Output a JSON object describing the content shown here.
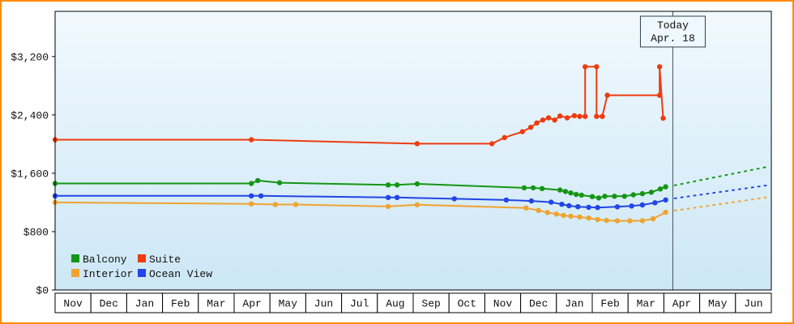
{
  "window": {
    "background": "#ffffff",
    "frame_border_color": "#ff8c00"
  },
  "chart_data": {
    "type": "line",
    "title": "",
    "xlabel": "",
    "ylabel": "",
    "grid": "off",
    "legend_position": "bottom-left inside plot",
    "ylim": [
      0,
      3820
    ],
    "yticks": [
      0,
      800,
      1600,
      2400,
      3200
    ],
    "ytick_labels": [
      "$0",
      "$800",
      "$1,600",
      "$2,400",
      "$3,200"
    ],
    "x_months": [
      "Nov",
      "Dec",
      "Jan",
      "Feb",
      "Mar",
      "Apr",
      "May",
      "Jun",
      "Jul",
      "Aug",
      "Sep",
      "Oct",
      "Nov",
      "Dec",
      "Jan",
      "Feb",
      "Mar",
      "Apr",
      "May",
      "Jun"
    ],
    "x_unit": "month index from first Nov (0-20); prices in USD",
    "plot_bg_top": "#f1f9fe",
    "plot_bg_bottom": "#cde7f6",
    "axis_color": "#000000",
    "today": {
      "line1": "Today",
      "line2": "Apr. 18",
      "x": 17.25,
      "line_color": "#45535e",
      "box_fill": "#eef8fe",
      "box_border": "#33414d"
    },
    "legend": [
      {
        "label": "Balcony",
        "color": "#149614"
      },
      {
        "label": "Suite",
        "color": "#ee3c0f"
      },
      {
        "label": "Interior",
        "color": "#f0a32f"
      },
      {
        "label": "Ocean View",
        "color": "#2145e6"
      }
    ],
    "series": [
      {
        "id": "balcony",
        "name": "Balcony",
        "color": "#149614",
        "points": [
          [
            0,
            1460
          ],
          [
            5.48,
            1460
          ],
          [
            5.66,
            1500
          ],
          [
            6.27,
            1470
          ],
          [
            9.3,
            1440
          ],
          [
            9.55,
            1440
          ],
          [
            10.11,
            1455
          ],
          [
            13.1,
            1400
          ],
          [
            13.35,
            1400
          ],
          [
            13.6,
            1390
          ],
          [
            14.1,
            1370
          ],
          [
            14.25,
            1350
          ],
          [
            14.4,
            1330
          ],
          [
            14.55,
            1310
          ],
          [
            14.7,
            1300
          ],
          [
            15.0,
            1280
          ],
          [
            15.18,
            1262
          ],
          [
            15.35,
            1285
          ],
          [
            15.62,
            1285
          ],
          [
            15.9,
            1285
          ],
          [
            16.15,
            1305
          ],
          [
            16.4,
            1320
          ],
          [
            16.65,
            1340
          ],
          [
            16.9,
            1385
          ],
          [
            17.05,
            1415
          ]
        ],
        "forecast": [
          [
            17.3,
            1435
          ],
          [
            19.85,
            1685
          ]
        ]
      },
      {
        "id": "interior",
        "name": "Interior",
        "color": "#f0a32f",
        "points": [
          [
            0,
            1200
          ],
          [
            5.48,
            1180
          ],
          [
            6.15,
            1172
          ],
          [
            6.72,
            1172
          ],
          [
            9.3,
            1145
          ],
          [
            10.11,
            1168
          ],
          [
            13.15,
            1125
          ],
          [
            13.5,
            1090
          ],
          [
            13.75,
            1062
          ],
          [
            14.0,
            1040
          ],
          [
            14.2,
            1022
          ],
          [
            14.4,
            1010
          ],
          [
            14.65,
            1000
          ],
          [
            14.9,
            986
          ],
          [
            15.15,
            966
          ],
          [
            15.4,
            954
          ],
          [
            15.7,
            948
          ],
          [
            16.05,
            948
          ],
          [
            16.4,
            950
          ],
          [
            16.7,
            976
          ],
          [
            17.05,
            1065
          ]
        ],
        "forecast": [
          [
            17.3,
            1088
          ],
          [
            19.85,
            1268
          ]
        ]
      },
      {
        "id": "ocean-view",
        "name": "Ocean View",
        "color": "#2145e6",
        "points": [
          [
            0,
            1290
          ],
          [
            5.48,
            1290
          ],
          [
            5.75,
            1290
          ],
          [
            9.3,
            1268
          ],
          [
            9.55,
            1268
          ],
          [
            11.15,
            1250
          ],
          [
            12.6,
            1234
          ],
          [
            13.3,
            1220
          ],
          [
            13.85,
            1204
          ],
          [
            14.15,
            1175
          ],
          [
            14.35,
            1155
          ],
          [
            14.6,
            1142
          ],
          [
            14.9,
            1134
          ],
          [
            15.15,
            1130
          ],
          [
            15.7,
            1140
          ],
          [
            16.1,
            1152
          ],
          [
            16.4,
            1166
          ],
          [
            16.75,
            1196
          ],
          [
            17.05,
            1235
          ]
        ],
        "forecast": [
          [
            17.3,
            1256
          ],
          [
            19.85,
            1432
          ]
        ]
      },
      {
        "id": "suite",
        "name": "Suite",
        "color": "#ee3c0f",
        "points": [
          [
            0,
            2060
          ],
          [
            5.48,
            2060
          ],
          [
            10.11,
            2005
          ],
          [
            12.2,
            2005
          ],
          [
            12.55,
            2090
          ],
          [
            13.05,
            2170
          ],
          [
            13.28,
            2230
          ],
          [
            13.45,
            2290
          ],
          [
            13.62,
            2330
          ],
          [
            13.78,
            2360
          ],
          [
            13.95,
            2330
          ],
          [
            14.1,
            2385
          ],
          [
            14.3,
            2360
          ],
          [
            14.5,
            2390
          ],
          [
            14.65,
            2380
          ],
          [
            14.8,
            2380
          ],
          [
            14.8,
            3060
          ],
          [
            15.12,
            3060
          ],
          [
            15.12,
            2380
          ],
          [
            15.28,
            2380
          ],
          [
            15.42,
            2670
          ],
          [
            16.88,
            2670
          ],
          [
            16.88,
            3060
          ],
          [
            16.98,
            2355
          ]
        ],
        "forecast": []
      }
    ]
  }
}
